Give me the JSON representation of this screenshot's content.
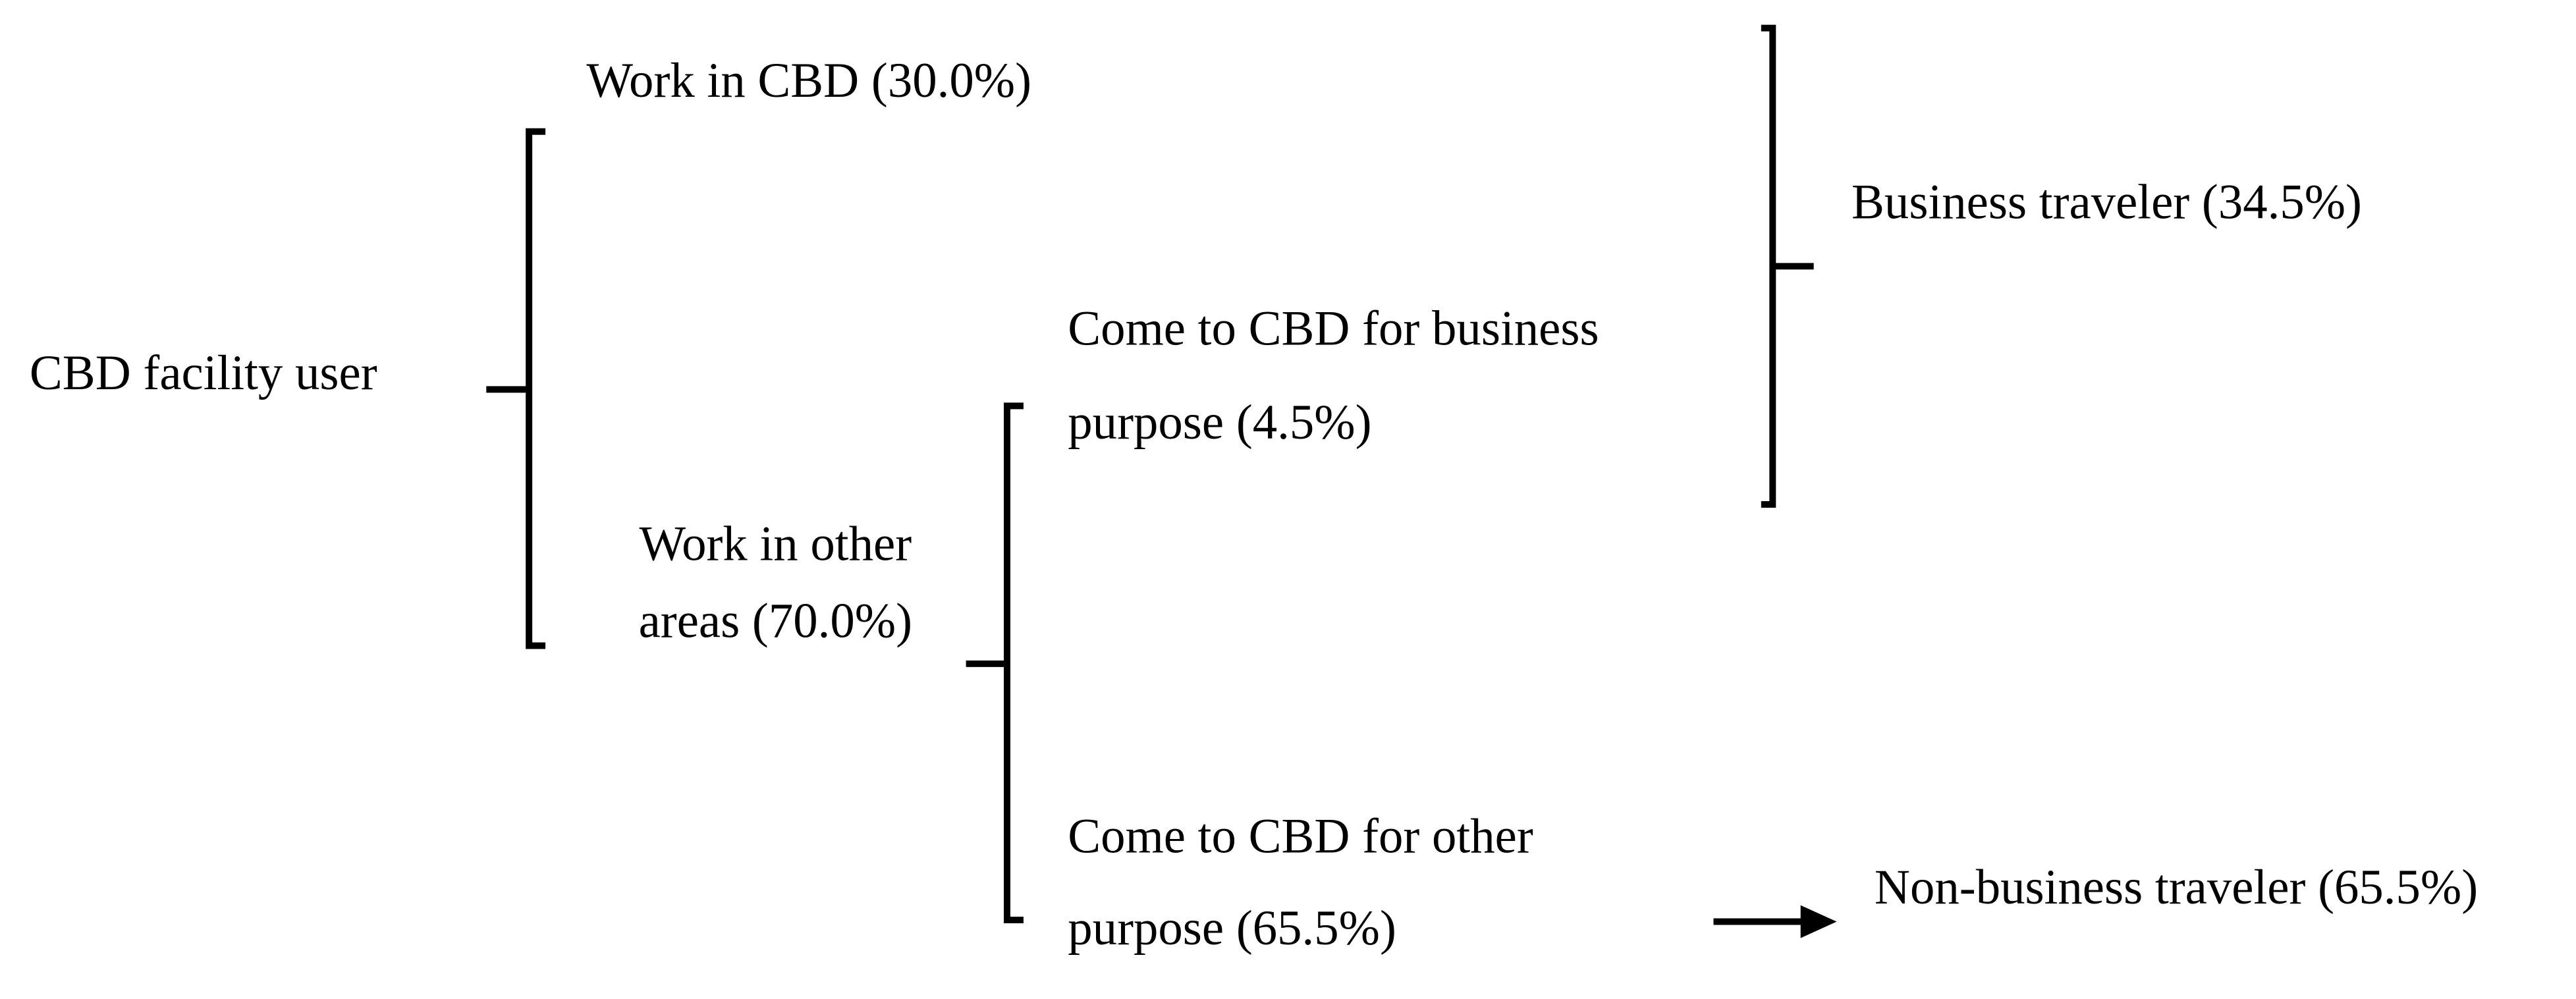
{
  "nodes": [
    {
      "lines": [
        "CBD facility user"
      ]
    },
    {
      "lines": [
        "Work in CBD (30.0%)"
      ]
    },
    {
      "lines": [
        "Work in other",
        "areas (70.0%)"
      ]
    },
    {
      "lines": [
        "Come to CBD for business",
        "purpose (4.5%)"
      ]
    },
    {
      "lines": [
        "Come to CBD for other",
        "purpose (65.5%)"
      ]
    },
    {
      "lines": [
        "Business traveler (34.5%)"
      ]
    },
    {
      "lines": [
        "Non-business traveler (65.5%)"
      ]
    }
  ]
}
